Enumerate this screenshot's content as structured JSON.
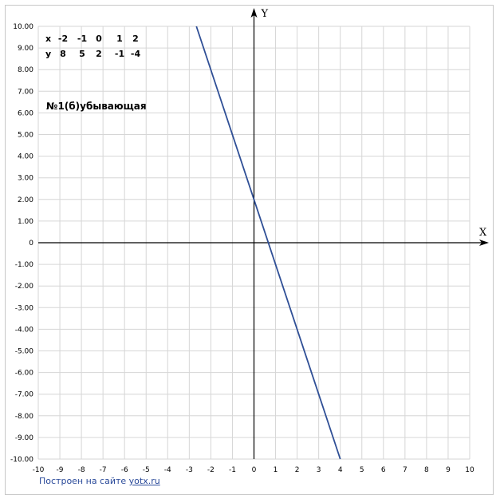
{
  "chart_data": {
    "type": "line",
    "axis_names": {
      "x": "X",
      "y": "Y"
    },
    "xlim": [
      -10,
      10
    ],
    "ylim": [
      -10,
      10
    ],
    "grid": true,
    "x_ticks": [
      "-10",
      "-9",
      "-8",
      "-7",
      "-6",
      "-5",
      "-4",
      "-3",
      "-2",
      "-1",
      "0",
      "1",
      "2",
      "3",
      "4",
      "5",
      "6",
      "7",
      "8",
      "9",
      "10"
    ],
    "y_ticks": [
      "10.00",
      "9.00",
      "8.00",
      "7.00",
      "6.00",
      "5.00",
      "4.00",
      "3.00",
      "2.00",
      "1.00",
      "0",
      "-1.00",
      "-2.00",
      "-3.00",
      "-4.00",
      "-5.00",
      "-6.00",
      "-7.00",
      "-8.00",
      "-9.00",
      "-10.00"
    ],
    "series": [
      {
        "color": "#2f4f96",
        "x": [
          -2.67,
          4
        ],
        "y": [
          10,
          -10
        ]
      }
    ],
    "value_table": {
      "x_row": [
        "x",
        "-2",
        "-1",
        "0",
        "1",
        "2"
      ],
      "y_row": [
        "y",
        "8",
        "5",
        "2",
        "-1",
        "-4"
      ]
    },
    "annotation": "№1(б)убывающая"
  },
  "footer": {
    "credit_text": "Построен на сайте",
    "credit_link": "yotx.ru"
  }
}
